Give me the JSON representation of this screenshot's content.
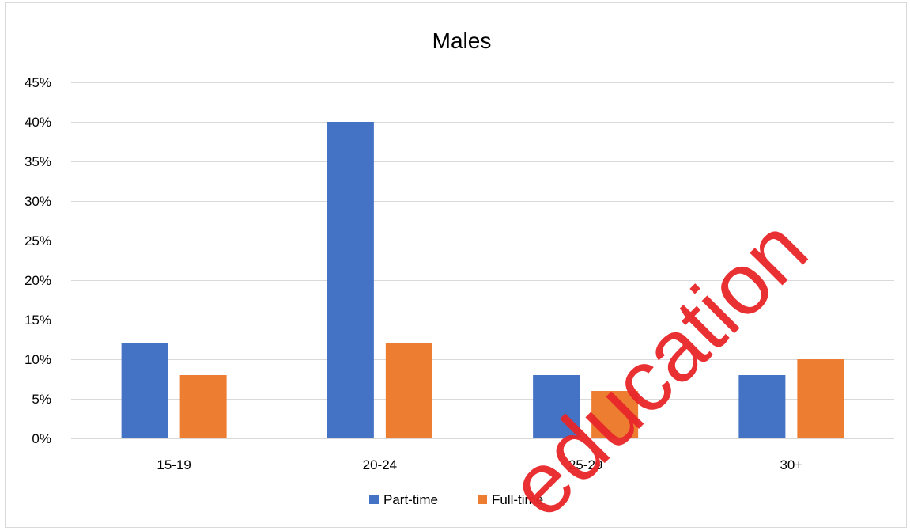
{
  "chart_data": {
    "type": "bar",
    "title": "Males",
    "xlabel": "",
    "ylabel": "",
    "categories": [
      "15-19",
      "20-24",
      "25-29",
      "30+"
    ],
    "series": [
      {
        "name": "Part-time",
        "values": [
          12,
          40,
          8,
          8
        ],
        "color": "#4472c4"
      },
      {
        "name": "Full-time",
        "values": [
          8,
          12,
          6,
          10
        ],
        "color": "#ed7d31"
      }
    ],
    "ylim": [
      0,
      45
    ],
    "yticks": [
      0,
      5,
      10,
      15,
      20,
      25,
      30,
      35,
      40,
      45
    ],
    "ytick_labels": [
      "0%",
      "5%",
      "10%",
      "15%",
      "20%",
      "25%",
      "30%",
      "35%",
      "40%",
      "45%"
    ],
    "grid": true,
    "legend_position": "bottom"
  },
  "watermark": {
    "text": "education",
    "color": "#e8262a"
  }
}
